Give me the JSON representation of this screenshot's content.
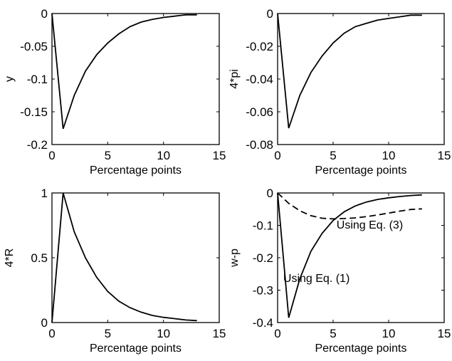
{
  "chart_data": [
    {
      "type": "line",
      "xlabel": "Percentage points",
      "ylabel": "y",
      "xlim": [
        0,
        15
      ],
      "ylim": [
        -0.2,
        0
      ],
      "xticks": [
        0,
        5,
        10,
        15
      ],
      "xtick_labels": [
        "0",
        "5",
        "10",
        "15"
      ],
      "yticks": [
        -0.2,
        -0.15,
        -0.1,
        -0.05,
        0
      ],
      "ytick_labels": [
        "-0.2",
        "-0.15",
        "-0.1",
        "-0.05",
        "0"
      ],
      "grid": false,
      "series": [
        {
          "x": [
            0,
            1,
            2,
            3,
            4,
            5,
            6,
            7,
            8,
            9,
            10,
            11,
            12,
            13
          ],
          "y": [
            0,
            -0.176,
            -0.125,
            -0.088,
            -0.063,
            -0.045,
            -0.031,
            -0.02,
            -0.013,
            -0.009,
            -0.006,
            -0.004,
            -0.002,
            -0.002
          ],
          "dashed": false
        }
      ],
      "annotations": []
    },
    {
      "type": "line",
      "xlabel": "Percentage points",
      "ylabel": "4*pi",
      "xlim": [
        0,
        15
      ],
      "ylim": [
        -0.08,
        0
      ],
      "xticks": [
        0,
        5,
        10,
        15
      ],
      "xtick_labels": [
        "0",
        "5",
        "10",
        "15"
      ],
      "yticks": [
        -0.08,
        -0.06,
        -0.04,
        -0.02,
        0
      ],
      "ytick_labels": [
        "-0.08",
        "-0.06",
        "-0.04",
        "-0.02",
        "0"
      ],
      "grid": false,
      "series": [
        {
          "x": [
            0,
            1,
            2,
            3,
            4,
            5,
            6,
            7,
            8,
            9,
            10,
            11,
            12,
            13
          ],
          "y": [
            0,
            -0.07,
            -0.05,
            -0.036,
            -0.026,
            -0.018,
            -0.012,
            -0.008,
            -0.006,
            -0.004,
            -0.003,
            -0.002,
            -0.001,
            -0.001
          ],
          "dashed": false
        }
      ],
      "annotations": []
    },
    {
      "type": "line",
      "xlabel": "Percentage points",
      "ylabel": "4*R",
      "xlim": [
        0,
        15
      ],
      "ylim": [
        0,
        1
      ],
      "xticks": [
        0,
        5,
        10,
        15
      ],
      "xtick_labels": [
        "0",
        "5",
        "10",
        "15"
      ],
      "yticks": [
        0,
        0.5,
        1
      ],
      "ytick_labels": [
        "0",
        "0.5",
        "1"
      ],
      "grid": false,
      "series": [
        {
          "x": [
            0,
            1,
            2,
            3,
            4,
            5,
            6,
            7,
            8,
            9,
            10,
            11,
            12,
            13
          ],
          "y": [
            0,
            1.0,
            0.7,
            0.5,
            0.35,
            0.24,
            0.165,
            0.115,
            0.08,
            0.055,
            0.04,
            0.03,
            0.02,
            0.015
          ],
          "dashed": false
        }
      ],
      "annotations": []
    },
    {
      "type": "line",
      "xlabel": "Percentage points",
      "ylabel": "w-p",
      "xlim": [
        0,
        15
      ],
      "ylim": [
        -0.4,
        0
      ],
      "xticks": [
        0,
        5,
        10,
        15
      ],
      "xtick_labels": [
        "0",
        "5",
        "10",
        "15"
      ],
      "yticks": [
        -0.4,
        -0.3,
        -0.2,
        -0.1,
        0
      ],
      "ytick_labels": [
        "-0.4",
        "-0.3",
        "-0.2",
        "-0.1",
        "0"
      ],
      "grid": false,
      "series": [
        {
          "x": [
            0,
            1,
            2,
            3,
            4,
            5,
            6,
            7,
            8,
            9,
            10,
            11,
            12,
            13
          ],
          "y": [
            0,
            -0.385,
            -0.265,
            -0.18,
            -0.125,
            -0.085,
            -0.058,
            -0.04,
            -0.028,
            -0.02,
            -0.015,
            -0.011,
            -0.008,
            -0.006
          ],
          "dashed": false
        },
        {
          "x": [
            0,
            1,
            2,
            3,
            4,
            5,
            6,
            7,
            8,
            9,
            10,
            11,
            12,
            13
          ],
          "y": [
            0,
            -0.032,
            -0.055,
            -0.07,
            -0.078,
            -0.08,
            -0.079,
            -0.077,
            -0.073,
            -0.068,
            -0.062,
            -0.056,
            -0.051,
            -0.049
          ],
          "dashed": true
        }
      ],
      "annotations": [
        {
          "text": "Using Eq. (3)",
          "x": 8.3,
          "y": -0.11
        },
        {
          "text": "Using Eq. (1)",
          "x": 3.5,
          "y": -0.275
        }
      ]
    }
  ]
}
